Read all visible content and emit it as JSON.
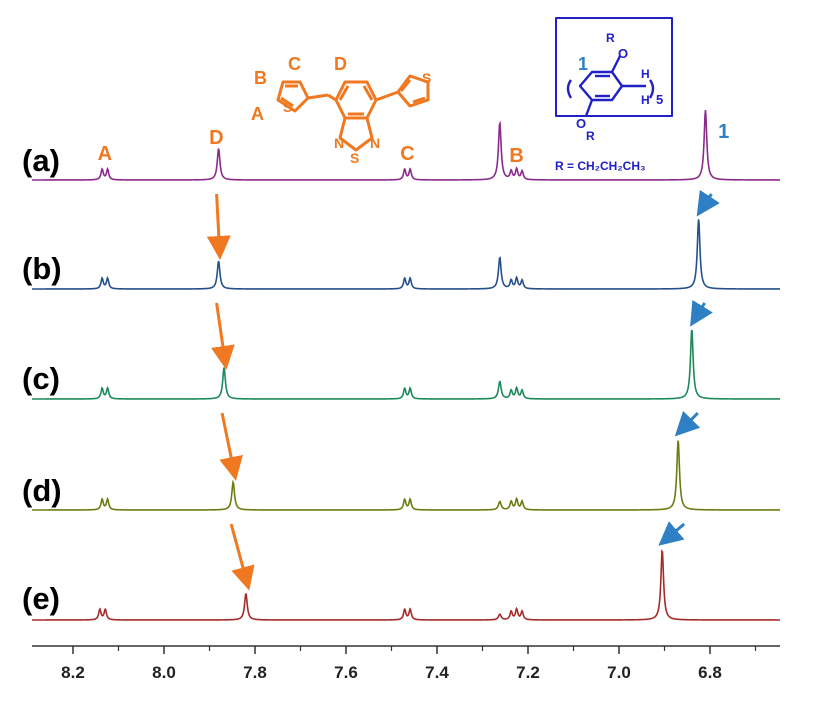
{
  "chart_data": {
    "type": "line",
    "x_axis": {
      "reversed": true,
      "range": [
        8.3,
        6.7
      ],
      "ticks": [
        "8.2",
        "8.0",
        "7.8",
        "7.6",
        "7.4",
        "7.2",
        "7.0",
        "6.8"
      ],
      "xlabel": ""
    },
    "series": [
      {
        "name": "(a)",
        "color": "#8b2a8b",
        "peaks": [
          {
            "shift": 8.13,
            "height": 0.15,
            "type": "doublet"
          },
          {
            "shift": 7.88,
            "height": 0.45,
            "type": "singlet"
          },
          {
            "shift": 7.465,
            "height": 0.15,
            "type": "doublet"
          },
          {
            "shift": 7.262,
            "height": 0.82,
            "type": "singlet"
          },
          {
            "shift": 7.225,
            "height": 0.15,
            "type": "multiplet"
          },
          {
            "shift": 6.81,
            "height": 1.0,
            "type": "singlet"
          }
        ]
      },
      {
        "name": "(b)",
        "color": "#26508a",
        "peaks": [
          {
            "shift": 8.13,
            "height": 0.15,
            "type": "doublet"
          },
          {
            "shift": 7.88,
            "height": 0.4,
            "type": "singlet"
          },
          {
            "shift": 7.465,
            "height": 0.15,
            "type": "doublet"
          },
          {
            "shift": 7.262,
            "height": 0.45,
            "type": "singlet"
          },
          {
            "shift": 7.225,
            "height": 0.15,
            "type": "multiplet"
          },
          {
            "shift": 6.825,
            "height": 1.0,
            "type": "singlet"
          }
        ]
      },
      {
        "name": "(c)",
        "color": "#1e8a5c",
        "peaks": [
          {
            "shift": 8.13,
            "height": 0.15,
            "type": "doublet"
          },
          {
            "shift": 7.868,
            "height": 0.45,
            "type": "singlet"
          },
          {
            "shift": 7.465,
            "height": 0.15,
            "type": "doublet"
          },
          {
            "shift": 7.262,
            "height": 0.25,
            "type": "singlet"
          },
          {
            "shift": 7.225,
            "height": 0.15,
            "type": "multiplet"
          },
          {
            "shift": 6.84,
            "height": 1.0,
            "type": "singlet"
          }
        ]
      },
      {
        "name": "(d)",
        "color": "#6b7d10",
        "peaks": [
          {
            "shift": 8.13,
            "height": 0.15,
            "type": "doublet"
          },
          {
            "shift": 7.848,
            "height": 0.4,
            "type": "singlet"
          },
          {
            "shift": 7.465,
            "height": 0.15,
            "type": "doublet"
          },
          {
            "shift": 7.262,
            "height": 0.12,
            "type": "singlet"
          },
          {
            "shift": 7.225,
            "height": 0.15,
            "type": "multiplet"
          },
          {
            "shift": 6.87,
            "height": 1.0,
            "type": "singlet"
          }
        ]
      },
      {
        "name": "(e)",
        "color": "#a52a2a",
        "peaks": [
          {
            "shift": 8.135,
            "height": 0.15,
            "type": "doublet"
          },
          {
            "shift": 7.82,
            "height": 0.38,
            "type": "singlet"
          },
          {
            "shift": 7.465,
            "height": 0.15,
            "type": "doublet"
          },
          {
            "shift": 7.262,
            "height": 0.08,
            "type": "singlet"
          },
          {
            "shift": 7.225,
            "height": 0.15,
            "type": "multiplet"
          },
          {
            "shift": 6.905,
            "height": 1.0,
            "type": "singlet"
          }
        ]
      }
    ],
    "peak_labels": [
      {
        "text": "A",
        "shift": 8.13,
        "color": "#f07820"
      },
      {
        "text": "D",
        "shift": 7.885,
        "color": "#f07820"
      },
      {
        "text": "C",
        "shift": 7.465,
        "color": "#f07820"
      },
      {
        "text": "B",
        "shift": 7.225,
        "color": "#f07820"
      },
      {
        "text": "1",
        "shift": 6.77,
        "color": "#2f7fc4"
      }
    ],
    "grid": false
  },
  "molecules": {
    "guest": {
      "color": "#f07820",
      "labels": [
        "B",
        "C",
        "D",
        "A"
      ],
      "atoms": [
        "S",
        "S",
        "N",
        "N",
        "S"
      ]
    },
    "host": {
      "color": "#2020c8",
      "number_label": "1",
      "number_color": "#2f7fc4",
      "atoms": [
        "R",
        "O",
        "O",
        "R",
        "H",
        "H"
      ],
      "subscript": "5",
      "r_definition": "R = CH₂CH₂CH₃"
    }
  }
}
